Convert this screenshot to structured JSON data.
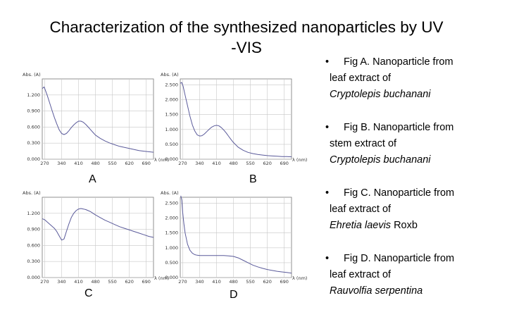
{
  "title_line1": "Characterization of the synthesized nanoparticles by   UV",
  "title_line2": "-VIS",
  "panel_labels": [
    "A",
    "B",
    "C",
    "D"
  ],
  "legend": [
    {
      "bullet": "•",
      "line1": "Fig A. Nanoparticle from",
      "line2": "leaf extract of",
      "species": "Cryptolepis buchanani",
      "authority": ""
    },
    {
      "bullet": "•",
      "line1": "Fig B. Nanoparticle from",
      "line2": "stem extract of",
      "species": "Cryptolepis buchanani",
      "authority": ""
    },
    {
      "bullet": "•",
      "line1": "Fig C. Nanoparticle from",
      "line2": "leaf extract of",
      "species": "Ehretia laevis",
      "authority": " Roxb"
    },
    {
      "bullet": "•",
      "line1": "Fig D. Nanoparticle from",
      "line2": "leaf extract of",
      "species": "Rauvolfia serpentina",
      "authority": ""
    }
  ],
  "colors": {
    "curve": "#5a5a9a",
    "grid": "#c8c8c8",
    "axis": "#777777"
  },
  "chart_data": [
    {
      "type": "line",
      "panel": "A",
      "ylabel": "Abs. (A)",
      "xlabel": "λ (nm)",
      "xlim": [
        260,
        720
      ],
      "ylim": [
        0,
        1.5
      ],
      "xticks": [
        270,
        340,
        410,
        480,
        550,
        620,
        690
      ],
      "xtick_labels": [
        "270",
        "340",
        "410",
        "480",
        "550",
        "620",
        "690"
      ],
      "yticks": [
        0,
        0.3,
        0.6,
        0.9,
        1.2
      ],
      "ytick_labels": [
        "0.000",
        "0.300",
        "0.600",
        "0.900",
        "1.200"
      ],
      "grid": true,
      "series": [
        {
          "x": [
            260,
            268,
            272,
            280,
            290,
            300,
            310,
            320,
            330,
            340,
            350,
            360,
            370,
            380,
            390,
            400,
            410,
            420,
            430,
            440,
            450,
            460,
            470,
            480,
            500,
            520,
            540,
            560,
            580,
            600,
            620,
            640,
            660,
            680,
            700,
            720
          ],
          "y": [
            1.32,
            1.35,
            1.3,
            1.2,
            1.06,
            0.92,
            0.78,
            0.66,
            0.55,
            0.48,
            0.46,
            0.48,
            0.53,
            0.59,
            0.64,
            0.68,
            0.71,
            0.71,
            0.69,
            0.65,
            0.6,
            0.55,
            0.5,
            0.45,
            0.39,
            0.34,
            0.3,
            0.27,
            0.24,
            0.22,
            0.2,
            0.18,
            0.16,
            0.15,
            0.14,
            0.13
          ]
        }
      ]
    },
    {
      "type": "line",
      "panel": "B",
      "ylabel": "Abs. (A)",
      "xlabel": "λ (nm)",
      "xlim": [
        260,
        720
      ],
      "ylim": [
        0,
        2.7
      ],
      "xticks": [
        270,
        340,
        410,
        480,
        550,
        620,
        690
      ],
      "xtick_labels": [
        "270",
        "340",
        "410",
        "480",
        "550",
        "620",
        "690"
      ],
      "yticks": [
        0,
        0.5,
        1.0,
        1.5,
        2.0,
        2.5
      ],
      "ytick_labels": [
        "0.000",
        "0.500",
        "1.000",
        "1.500",
        "2.000",
        "2.500"
      ],
      "grid": true,
      "series": [
        {
          "x": [
            260,
            266,
            272,
            280,
            290,
            300,
            310,
            320,
            330,
            340,
            350,
            360,
            370,
            380,
            390,
            400,
            410,
            420,
            430,
            440,
            450,
            460,
            470,
            480,
            500,
            520,
            540,
            560,
            580,
            600,
            620,
            640,
            660,
            680,
            700,
            720
          ],
          "y": [
            2.55,
            2.58,
            2.45,
            2.15,
            1.8,
            1.45,
            1.15,
            0.95,
            0.82,
            0.78,
            0.79,
            0.85,
            0.93,
            1.01,
            1.08,
            1.12,
            1.14,
            1.12,
            1.06,
            0.98,
            0.88,
            0.77,
            0.66,
            0.56,
            0.4,
            0.3,
            0.23,
            0.19,
            0.16,
            0.14,
            0.12,
            0.11,
            0.1,
            0.09,
            0.09,
            0.08
          ]
        }
      ]
    },
    {
      "type": "line",
      "panel": "C",
      "ylabel": "Abs. (A)",
      "xlabel": "λ (nm)",
      "xlim": [
        260,
        720
      ],
      "ylim": [
        0,
        1.5
      ],
      "xticks": [
        270,
        340,
        410,
        480,
        550,
        620,
        690
      ],
      "xtick_labels": [
        "270",
        "340",
        "410",
        "480",
        "550",
        "620",
        "690"
      ],
      "yticks": [
        0,
        0.3,
        0.6,
        0.9,
        1.2
      ],
      "ytick_labels": [
        "0.000",
        "0.300",
        "0.600",
        "0.900",
        "1.200"
      ],
      "grid": true,
      "series": [
        {
          "x": [
            260,
            270,
            280,
            290,
            300,
            310,
            320,
            330,
            340,
            350,
            360,
            370,
            380,
            390,
            400,
            410,
            420,
            430,
            440,
            450,
            460,
            470,
            480,
            500,
            520,
            540,
            560,
            580,
            600,
            620,
            640,
            660,
            680,
            700,
            720
          ],
          "y": [
            1.1,
            1.08,
            1.04,
            1.0,
            0.96,
            0.92,
            0.86,
            0.78,
            0.7,
            0.72,
            0.86,
            1.0,
            1.12,
            1.2,
            1.25,
            1.28,
            1.29,
            1.28,
            1.27,
            1.25,
            1.23,
            1.2,
            1.17,
            1.12,
            1.07,
            1.03,
            0.99,
            0.95,
            0.92,
            0.89,
            0.86,
            0.83,
            0.8,
            0.77,
            0.75
          ]
        }
      ]
    },
    {
      "type": "line",
      "panel": "D",
      "ylabel": "Abs. (A)",
      "xlabel": "λ (nm)",
      "xlim": [
        260,
        720
      ],
      "ylim": [
        0,
        2.7
      ],
      "xticks": [
        270,
        340,
        410,
        480,
        550,
        620,
        690
      ],
      "xtick_labels": [
        "270",
        "340",
        "410",
        "480",
        "550",
        "620",
        "690"
      ],
      "yticks": [
        0,
        0.5,
        1.0,
        1.5,
        2.0,
        2.5
      ],
      "ytick_labels": [
        "0.000",
        "0.500",
        "1.000",
        "1.500",
        "2.000",
        "2.500"
      ],
      "grid": true,
      "series": [
        {
          "x": [
            262,
            266,
            270,
            275,
            280,
            290,
            300,
            310,
            320,
            330,
            340,
            360,
            380,
            400,
            420,
            440,
            460,
            480,
            500,
            520,
            540,
            560,
            580,
            600,
            620,
            640,
            660,
            680,
            700,
            720
          ],
          "y": [
            2.75,
            2.6,
            2.2,
            1.8,
            1.5,
            1.12,
            0.92,
            0.82,
            0.77,
            0.75,
            0.74,
            0.74,
            0.74,
            0.74,
            0.74,
            0.74,
            0.73,
            0.71,
            0.66,
            0.58,
            0.5,
            0.42,
            0.36,
            0.31,
            0.27,
            0.24,
            0.21,
            0.19,
            0.17,
            0.15
          ]
        }
      ]
    }
  ]
}
